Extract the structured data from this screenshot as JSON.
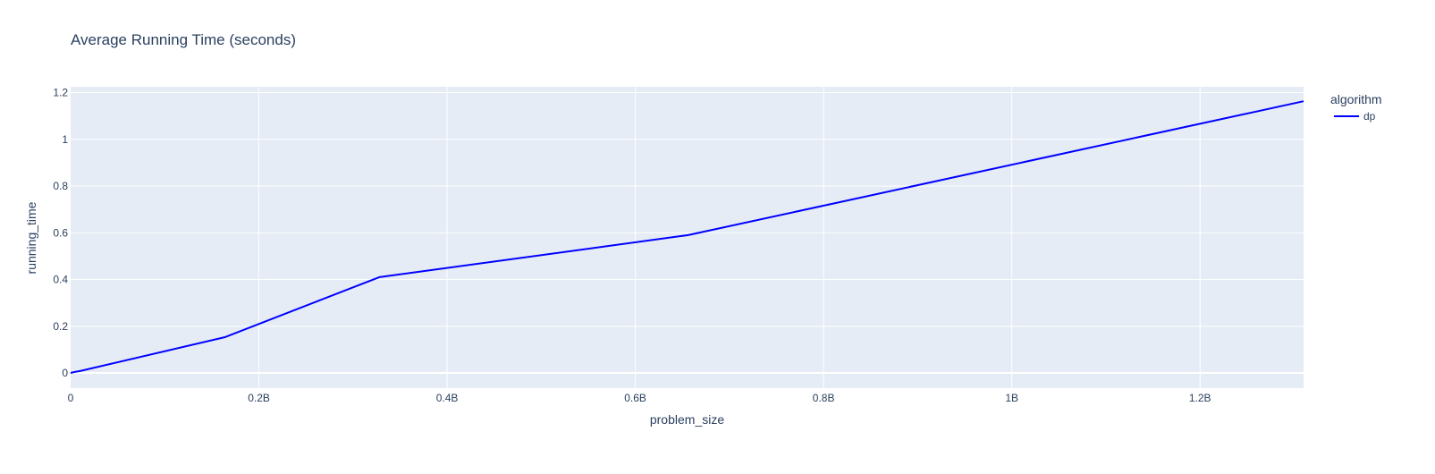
{
  "chart_data": {
    "type": "line",
    "title": "Average Running Time (seconds)",
    "xlabel": "problem_size",
    "ylabel": "running_time",
    "xlim": [
      0,
      1310000000
    ],
    "ylim": [
      -0.065,
      1.225
    ],
    "x_ticks": [
      {
        "value": 0,
        "label": "0"
      },
      {
        "value": 200000000,
        "label": "0.2B"
      },
      {
        "value": 400000000,
        "label": "0.4B"
      },
      {
        "value": 600000000,
        "label": "0.6B"
      },
      {
        "value": 800000000,
        "label": "0.8B"
      },
      {
        "value": 1000000000,
        "label": "1B"
      },
      {
        "value": 1200000000,
        "label": "1.2B"
      }
    ],
    "y_ticks": [
      {
        "value": 0,
        "label": "0"
      },
      {
        "value": 0.2,
        "label": "0.2"
      },
      {
        "value": 0.4,
        "label": "0.4"
      },
      {
        "value": 0.6,
        "label": "0.6"
      },
      {
        "value": 0.8,
        "label": "0.8"
      },
      {
        "value": 1,
        "label": "1"
      },
      {
        "value": 1.2,
        "label": "1.2"
      }
    ],
    "grid": true,
    "legend": {
      "title": "algorithm",
      "position": "top-right"
    },
    "plot_background": "#e5ecf6",
    "grid_color": "#ffffff",
    "series": [
      {
        "name": "dp",
        "color": "#0000ff",
        "x": [
          0,
          5000000,
          10000000,
          164000000,
          328000000,
          656000000,
          1310000000
        ],
        "y": [
          0,
          0.005,
          0.008,
          0.153,
          0.41,
          0.59,
          1.163
        ]
      }
    ]
  }
}
